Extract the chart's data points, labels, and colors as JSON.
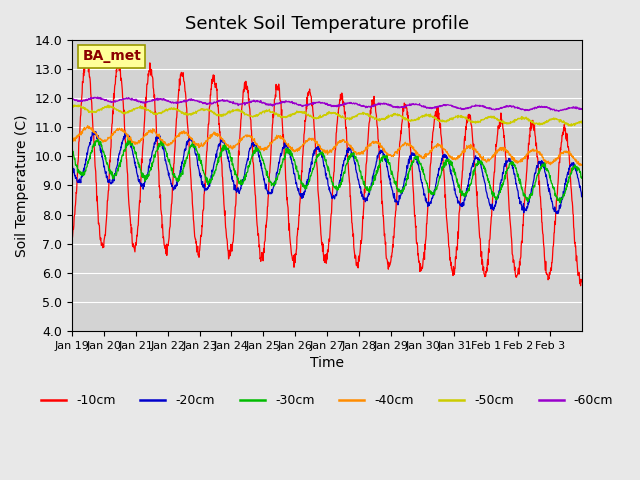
{
  "title": "Sentek Soil Temperature profile",
  "xlabel": "Time",
  "ylabel": "Soil Temperature (C)",
  "ylim": [
    4.0,
    14.0
  ],
  "yticks": [
    4.0,
    5.0,
    6.0,
    7.0,
    8.0,
    9.0,
    10.0,
    11.0,
    12.0,
    13.0,
    14.0
  ],
  "background_color": "#e8e8e8",
  "plot_bg_color": "#d3d3d3",
  "annotation_text": "BA_met",
  "annotation_color": "#8b0000",
  "annotation_bg": "#ffff99",
  "depths": [
    "-10cm",
    "-20cm",
    "-30cm",
    "-40cm",
    "-50cm",
    "-60cm"
  ],
  "colors": [
    "#ff0000",
    "#0000cc",
    "#00bb00",
    "#ff8c00",
    "#cccc00",
    "#9900cc"
  ],
  "xtick_labels": [
    "Jan 19",
    "Jan 20",
    "Jan 21",
    "Jan 22",
    "Jan 23",
    "Jan 24",
    "Jan 25",
    "Jan 26",
    "Jan 27",
    "Jan 28",
    "Jan 29",
    "Jan 30",
    "Jan 31",
    "Feb 1",
    "Feb 2",
    "Feb 3"
  ]
}
